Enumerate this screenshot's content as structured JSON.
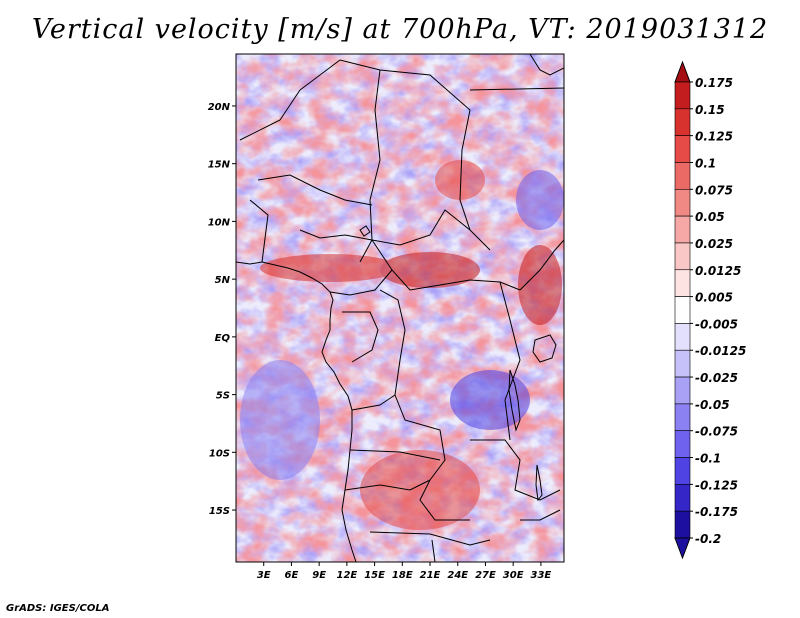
{
  "title": "Vertical velocity [m/s] at 700hPa, VT: 2019031312",
  "credit": "GrADS: IGES/COLA",
  "map": {
    "lon_range": [
      0,
      35.5
    ],
    "lat_range": [
      -19.5,
      24.5
    ],
    "lat_ticks": [
      {
        "value": 20,
        "label": "20N"
      },
      {
        "value": 15,
        "label": "15N"
      },
      {
        "value": 10,
        "label": "10N"
      },
      {
        "value": 5,
        "label": "5N"
      },
      {
        "value": 0,
        "label": "EQ"
      },
      {
        "value": -5,
        "label": "5S"
      },
      {
        "value": -10,
        "label": "10S"
      },
      {
        "value": -15,
        "label": "15S"
      }
    ],
    "lon_ticks": [
      {
        "value": 3,
        "label": "3E"
      },
      {
        "value": 6,
        "label": "6E"
      },
      {
        "value": 9,
        "label": "9E"
      },
      {
        "value": 12,
        "label": "12E"
      },
      {
        "value": 15,
        "label": "15E"
      },
      {
        "value": 18,
        "label": "18E"
      },
      {
        "value": 21,
        "label": "21E"
      },
      {
        "value": 24,
        "label": "24E"
      },
      {
        "value": 27,
        "label": "27E"
      },
      {
        "value": 30,
        "label": "30E"
      },
      {
        "value": 33,
        "label": "33E"
      }
    ],
    "positive_color": "#e8494f",
    "negative_color": "#6a5ef0"
  },
  "colorbar": {
    "levels": [
      {
        "label": "0.175",
        "color": "#a50e12"
      },
      {
        "label": "0.15",
        "color": "#c41d1f"
      },
      {
        "label": "0.125",
        "color": "#d8322f"
      },
      {
        "label": "0.1",
        "color": "#e64b47"
      },
      {
        "label": "0.075",
        "color": "#ec6a66"
      },
      {
        "label": "0.05",
        "color": "#f08884"
      },
      {
        "label": "0.025",
        "color": "#f5a8a5"
      },
      {
        "label": "0.0125",
        "color": "#f9c7c5"
      },
      {
        "label": "0.005",
        "color": "#fde4e3"
      },
      {
        "label": "-0.005",
        "color": "#ffffff"
      },
      {
        "label": "-0.0125",
        "color": "#e2e0fc"
      },
      {
        "label": "-0.025",
        "color": "#c6c1f9"
      },
      {
        "label": "-0.05",
        "color": "#a9a1f6"
      },
      {
        "label": "-0.075",
        "color": "#8b81f2"
      },
      {
        "label": "-0.1",
        "color": "#6e62ee"
      },
      {
        "label": "-0.125",
        "color": "#4f43e3"
      },
      {
        "label": "-0.175",
        "color": "#3526c8"
      },
      {
        "label": "-0.2",
        "color": "#1d10a0"
      }
    ],
    "top_arrow_color": "#a50e12",
    "bottom_arrow_color": "#1d10a0"
  }
}
